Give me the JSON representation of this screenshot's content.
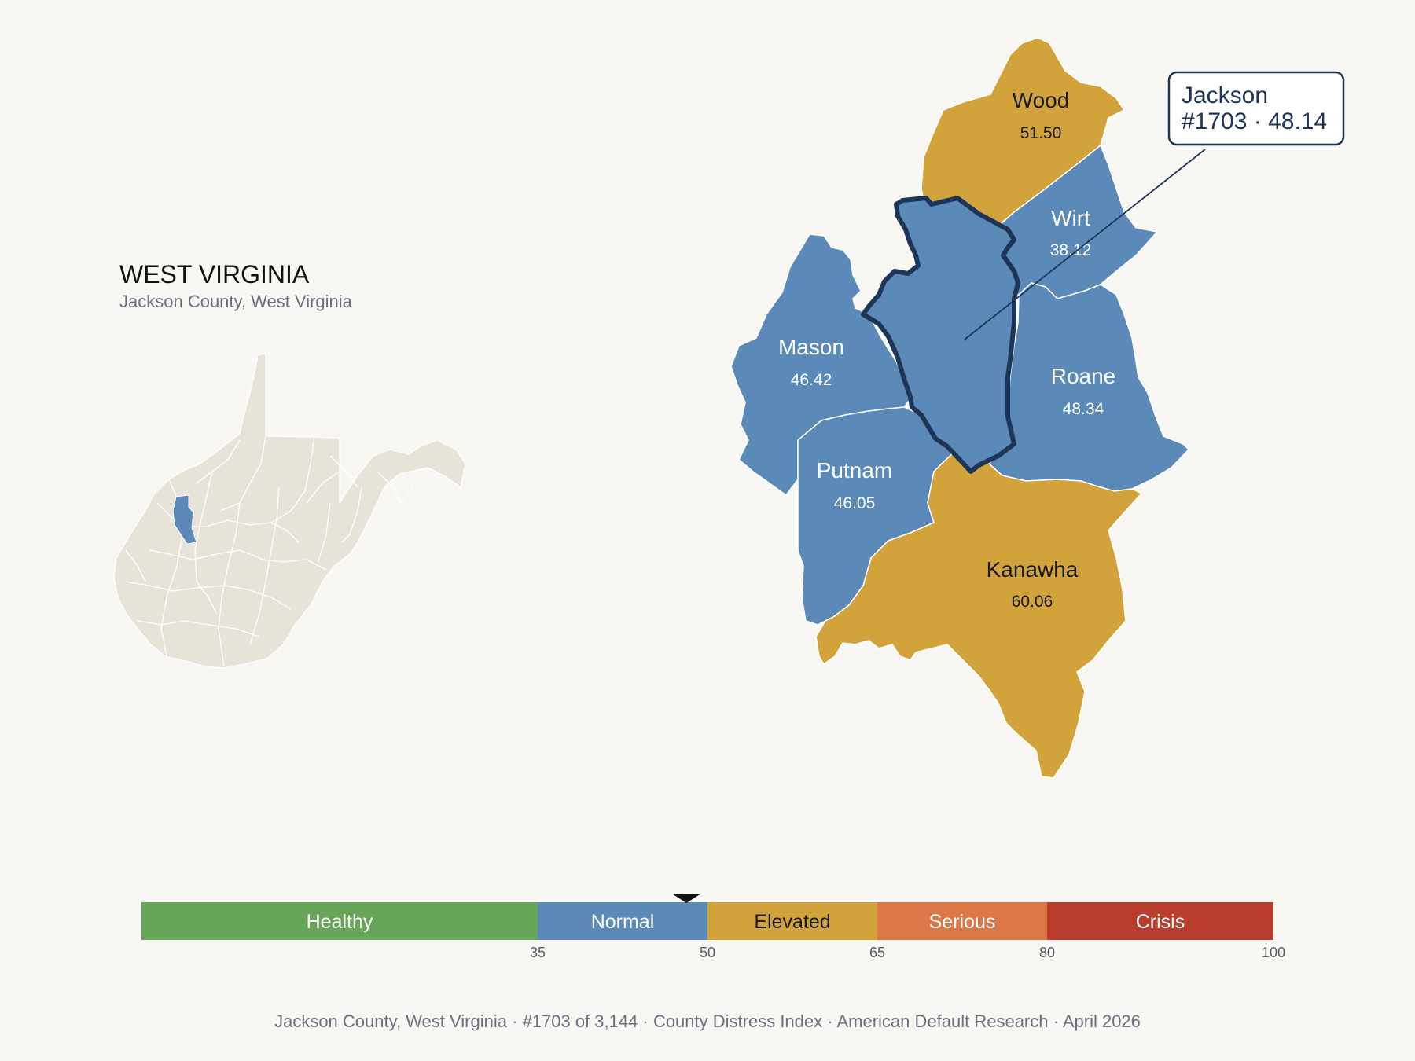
{
  "state": {
    "title": "WEST VIRGINIA",
    "subtitle": "Jackson County, West Virginia"
  },
  "counties": {
    "wood": {
      "name": "Wood",
      "value": "51.50",
      "category": "Elevated"
    },
    "wirt": {
      "name": "Wirt",
      "value": "38.12",
      "category": "Normal"
    },
    "mason": {
      "name": "Mason",
      "value": "46.42",
      "category": "Normal"
    },
    "roane": {
      "name": "Roane",
      "value": "48.34",
      "category": "Normal"
    },
    "putnam": {
      "name": "Putnam",
      "value": "46.05",
      "category": "Normal"
    },
    "kanawha": {
      "name": "Kanawha",
      "value": "60.06",
      "category": "Elevated"
    },
    "jackson": {
      "name": "Jackson",
      "value": "48.14",
      "category": "Normal",
      "rank": "#1703"
    }
  },
  "callout": {
    "line1": "Jackson",
    "line2": "#1703 · 48.14"
  },
  "scale": {
    "bands": [
      {
        "label": "Healthy",
        "from": 0,
        "to": 35,
        "color": "#67a659",
        "text_color": "#ffffff"
      },
      {
        "label": "Normal",
        "from": 35,
        "to": 50,
        "color": "#5b89b8",
        "text_color": "#ffffff"
      },
      {
        "label": "Elevated",
        "from": 50,
        "to": 65,
        "color": "#d2a33b",
        "text_color": "#1a1a1a"
      },
      {
        "label": "Serious",
        "from": 65,
        "to": 80,
        "color": "#dc7747",
        "text_color": "#ffffff"
      },
      {
        "label": "Crisis",
        "from": 80,
        "to": 100,
        "color": "#b93c2c",
        "text_color": "#ffffff"
      }
    ],
    "ticks": [
      "35",
      "50",
      "65",
      "80",
      "100"
    ],
    "marker_value": 48.14
  },
  "colors": {
    "normal": "#5b89b8",
    "elevated": "#d2a33b",
    "highlight_border": "#1d3557",
    "state_fill": "#e8e3d8"
  },
  "footer": {
    "items": [
      "Jackson County, West Virginia",
      "#1703 of 3,144",
      "County Distress Index",
      "American Default Research",
      "April 2026"
    ],
    "separator": "·"
  }
}
